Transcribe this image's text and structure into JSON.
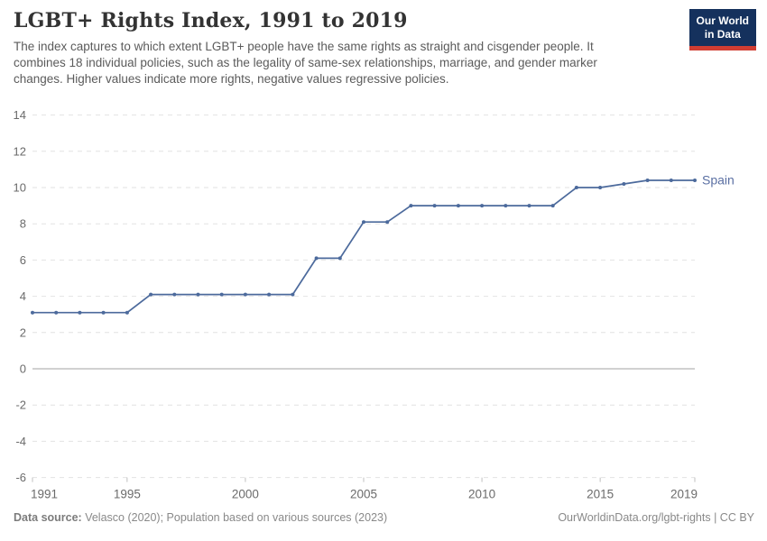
{
  "header": {
    "title": "LGBT+ Rights Index, 1991 to 2019",
    "subtitle": "The index captures to which extent LGBT+ people have the same rights as straight and cisgender people. It\ncombines 18 individual policies, such as the legality of same-sex relationships, marriage, and gender marker\nchanges. Higher values indicate more rights, negative values regressive policies.",
    "logo": {
      "line1": "Our World",
      "line2": "in Data",
      "bg_color": "#15315d",
      "accent_color": "#d13d32"
    }
  },
  "chart_data": {
    "type": "line",
    "title": "LGBT+ Rights Index, 1991 to 2019",
    "xlabel": "",
    "ylabel": "",
    "xlim": [
      1991,
      2019
    ],
    "ylim": [
      -6,
      14
    ],
    "xticks": [
      1991,
      1995,
      2000,
      2005,
      2010,
      2015,
      2019
    ],
    "yticks": [
      -6,
      -4,
      -2,
      0,
      2,
      4,
      6,
      8,
      10,
      12,
      14
    ],
    "grid": "horizontal-dashed",
    "zero_line": true,
    "legend_position": "end-of-line-label",
    "x": [
      1991,
      1992,
      1993,
      1994,
      1995,
      1996,
      1997,
      1998,
      1999,
      2000,
      2001,
      2002,
      2003,
      2004,
      2005,
      2006,
      2007,
      2008,
      2009,
      2010,
      2011,
      2012,
      2013,
      2014,
      2015,
      2016,
      2017,
      2018,
      2019
    ],
    "series": [
      {
        "name": "Spain",
        "color": "#4c6a9c",
        "label_color": "#5b70a3",
        "values": [
          3.1,
          3.1,
          3.1,
          3.1,
          3.1,
          4.1,
          4.1,
          4.1,
          4.1,
          4.1,
          4.1,
          4.1,
          6.1,
          6.1,
          8.1,
          8.1,
          9,
          9,
          9,
          9,
          9,
          9,
          9,
          10,
          10,
          10.2,
          10.4,
          10.4,
          10.4
        ]
      }
    ]
  },
  "style_colors": {
    "gridline": "#e2e2e2",
    "zero_line": "#a3a3a3",
    "axis_text": "#6b6b6b",
    "tick_mark": "#c0c0c0"
  },
  "footer": {
    "datasource_label": "Data source:",
    "datasource_text": " Velasco (2020); Population based on various sources (2023)",
    "link_text": "OurWorldinData.org/lgbt-rights | CC BY"
  }
}
